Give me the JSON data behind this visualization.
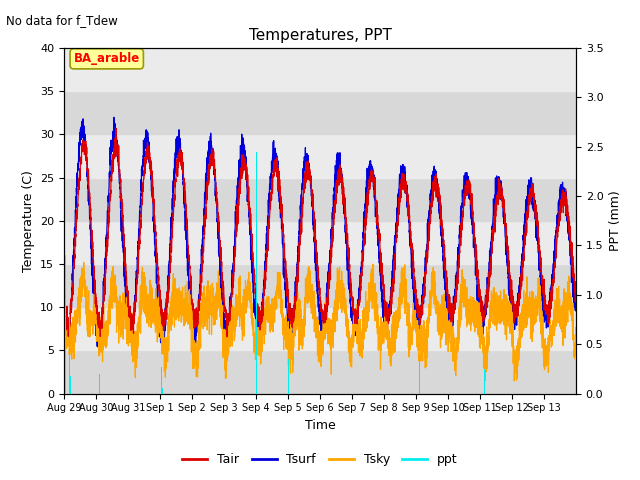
{
  "title": "Temperatures, PPT",
  "suptitle": "No data for f_Tdew",
  "xlabel": "Time",
  "ylabel_left": "Temperature (C)",
  "ylabel_right": "PPT (mm)",
  "ylim_left": [
    0,
    40
  ],
  "ylim_right": [
    0.0,
    3.5
  ],
  "annotation": "BA_arable",
  "colors": {
    "Tair": "#dd0000",
    "Tsurf": "#0000dd",
    "Tsky": "#ffa500",
    "ppt": "#00eeee"
  },
  "tick_labels": [
    "Aug 29",
    "Aug 30",
    "Aug 31",
    "Sep 1",
    "Sep 2",
    "Sep 3",
    "Sep 4",
    "Sep 5",
    "Sep 6",
    "Sep 7",
    "Sep 8",
    "Sep 9",
    "Sep 10",
    "Sep 11",
    "Sep 12",
    "Sep 13"
  ],
  "legend_labels": [
    "Tair",
    "Tsurf",
    "Tsky",
    "ppt"
  ],
  "bg_dark": "#d8d8d8",
  "bg_light": "#ebebeb"
}
